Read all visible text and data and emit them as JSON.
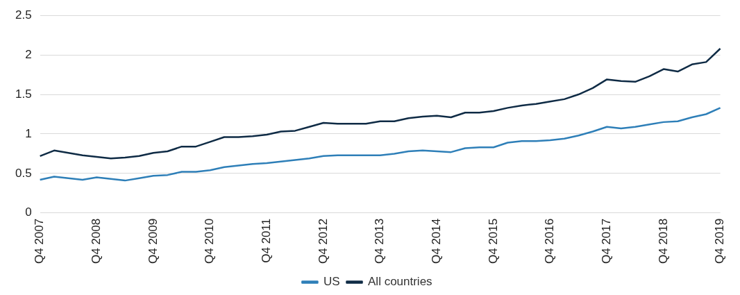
{
  "chart_data": {
    "type": "line",
    "categories": [
      "Q4 2007",
      null,
      null,
      null,
      "Q4 2008",
      null,
      null,
      null,
      "Q4 2009",
      null,
      null,
      null,
      "Q4 2010",
      null,
      null,
      null,
      "Q4 2011",
      null,
      null,
      null,
      "Q4 2012",
      null,
      null,
      null,
      "Q4 2013",
      null,
      null,
      null,
      "Q4 2014",
      null,
      null,
      null,
      "Q4 2015",
      null,
      null,
      null,
      "Q4 2016",
      null,
      null,
      null,
      "Q4 2017",
      null,
      null,
      null,
      "Q4 2018",
      null,
      null,
      null,
      "Q4 2019"
    ],
    "series": [
      {
        "name": "US",
        "color": "#2e7fb8",
        "values": [
          0.42,
          0.46,
          0.44,
          0.42,
          0.45,
          0.43,
          0.41,
          0.44,
          0.47,
          0.48,
          0.52,
          0.52,
          0.54,
          0.58,
          0.6,
          0.62,
          0.63,
          0.65,
          0.67,
          0.69,
          0.72,
          0.73,
          0.73,
          0.73,
          0.73,
          0.75,
          0.78,
          0.79,
          0.78,
          0.77,
          0.82,
          0.83,
          0.83,
          0.89,
          0.91,
          0.91,
          0.92,
          0.94,
          0.98,
          1.03,
          1.09,
          1.07,
          1.09,
          1.12,
          1.15,
          1.16,
          1.21,
          1.25,
          1.33
        ]
      },
      {
        "name": "All countries",
        "color": "#0f2b45",
        "values": [
          0.72,
          0.79,
          0.76,
          0.73,
          0.71,
          0.69,
          0.7,
          0.72,
          0.76,
          0.78,
          0.84,
          0.84,
          0.9,
          0.96,
          0.96,
          0.97,
          0.99,
          1.03,
          1.04,
          1.09,
          1.14,
          1.13,
          1.13,
          1.13,
          1.16,
          1.16,
          1.2,
          1.22,
          1.23,
          1.21,
          1.27,
          1.27,
          1.29,
          1.33,
          1.36,
          1.38,
          1.41,
          1.44,
          1.5,
          1.58,
          1.69,
          1.67,
          1.66,
          1.73,
          1.82,
          1.79,
          1.88,
          1.91,
          2.08
        ]
      }
    ],
    "ylim": [
      0,
      2.5
    ],
    "yticks": [
      0,
      0.5,
      1,
      1.5,
      2,
      2.5
    ],
    "grid": "y",
    "legend": "bottom",
    "marker": "none",
    "line_style": "solid"
  }
}
